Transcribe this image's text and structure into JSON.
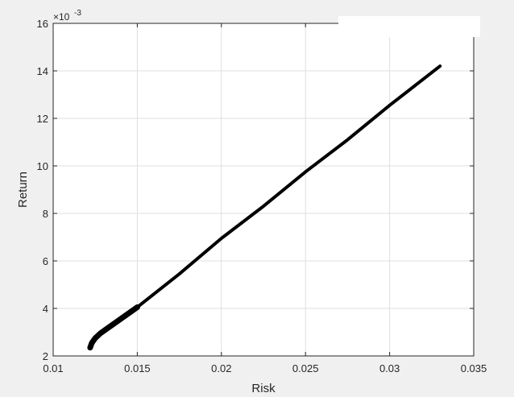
{
  "chart_data": {
    "type": "line",
    "title": "",
    "xlabel": "Risk",
    "ylabel": "Return",
    "xlim": [
      0.01,
      0.035
    ],
    "ylim": [
      2,
      16
    ],
    "y_scale_factor": "×10",
    "y_scale_exponent": "-3",
    "grid": true,
    "xticks": [
      "0.01",
      "0.015",
      "0.02",
      "0.025",
      "0.03",
      "0.035"
    ],
    "yticks": [
      "2",
      "4",
      "6",
      "8",
      "10",
      "12",
      "14",
      "16"
    ],
    "series": [
      {
        "color": "#000000",
        "x": [
          0.0122,
          0.0123,
          0.0125,
          0.0128,
          0.0135,
          0.015,
          0.0175,
          0.02,
          0.0225,
          0.025,
          0.0275,
          0.03,
          0.033
        ],
        "y": [
          2.35,
          2.55,
          2.75,
          2.95,
          3.3,
          4.05,
          5.45,
          6.95,
          8.3,
          9.75,
          11.1,
          12.55,
          14.2
        ]
      }
    ]
  }
}
